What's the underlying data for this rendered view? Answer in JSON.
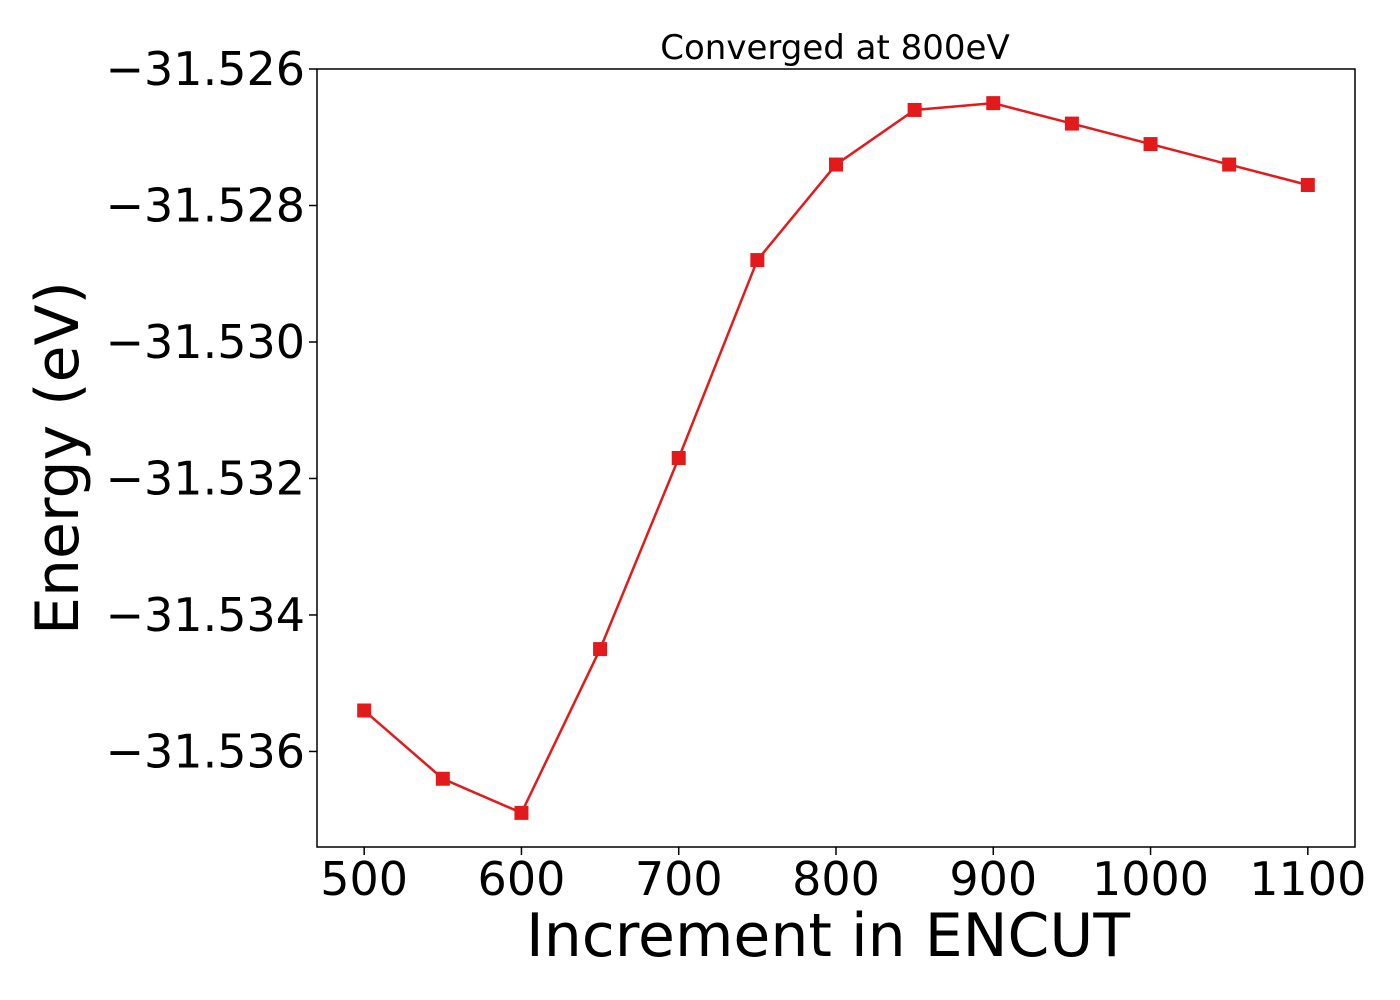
{
  "chart_data": {
    "type": "line",
    "title": "Converged at 800eV",
    "xlabel": "Increment in ENCUT",
    "ylabel": "Energy (eV)",
    "x": [
      500,
      550,
      600,
      650,
      700,
      750,
      800,
      850,
      900,
      950,
      1000,
      1050,
      1100
    ],
    "xlim": [
      470,
      1130
    ],
    "ylim": [
      -31.5374,
      -31.526
    ],
    "xticks": [
      500,
      600,
      700,
      800,
      900,
      1000,
      1100
    ],
    "xtick_labels": [
      "500",
      "600",
      "700",
      "800",
      "900",
      "1000",
      "1100"
    ],
    "yticks": [
      -31.526,
      -31.528,
      -31.53,
      -31.532,
      -31.534,
      -31.536
    ],
    "ytick_labels": [
      "−31.526",
      "−31.528",
      "−31.530",
      "−31.532",
      "−31.534",
      "−31.536"
    ],
    "grid": false,
    "legend": "none",
    "series": [
      {
        "color": "#e31a1c",
        "marker": "square",
        "values": [
          -31.5354,
          -31.5364,
          -31.5369,
          -31.5345,
          -31.5317,
          -31.5288,
          -31.5274,
          -31.5266,
          -31.5265,
          -31.5268,
          -31.5271,
          -31.5274,
          -31.5277
        ]
      }
    ]
  }
}
